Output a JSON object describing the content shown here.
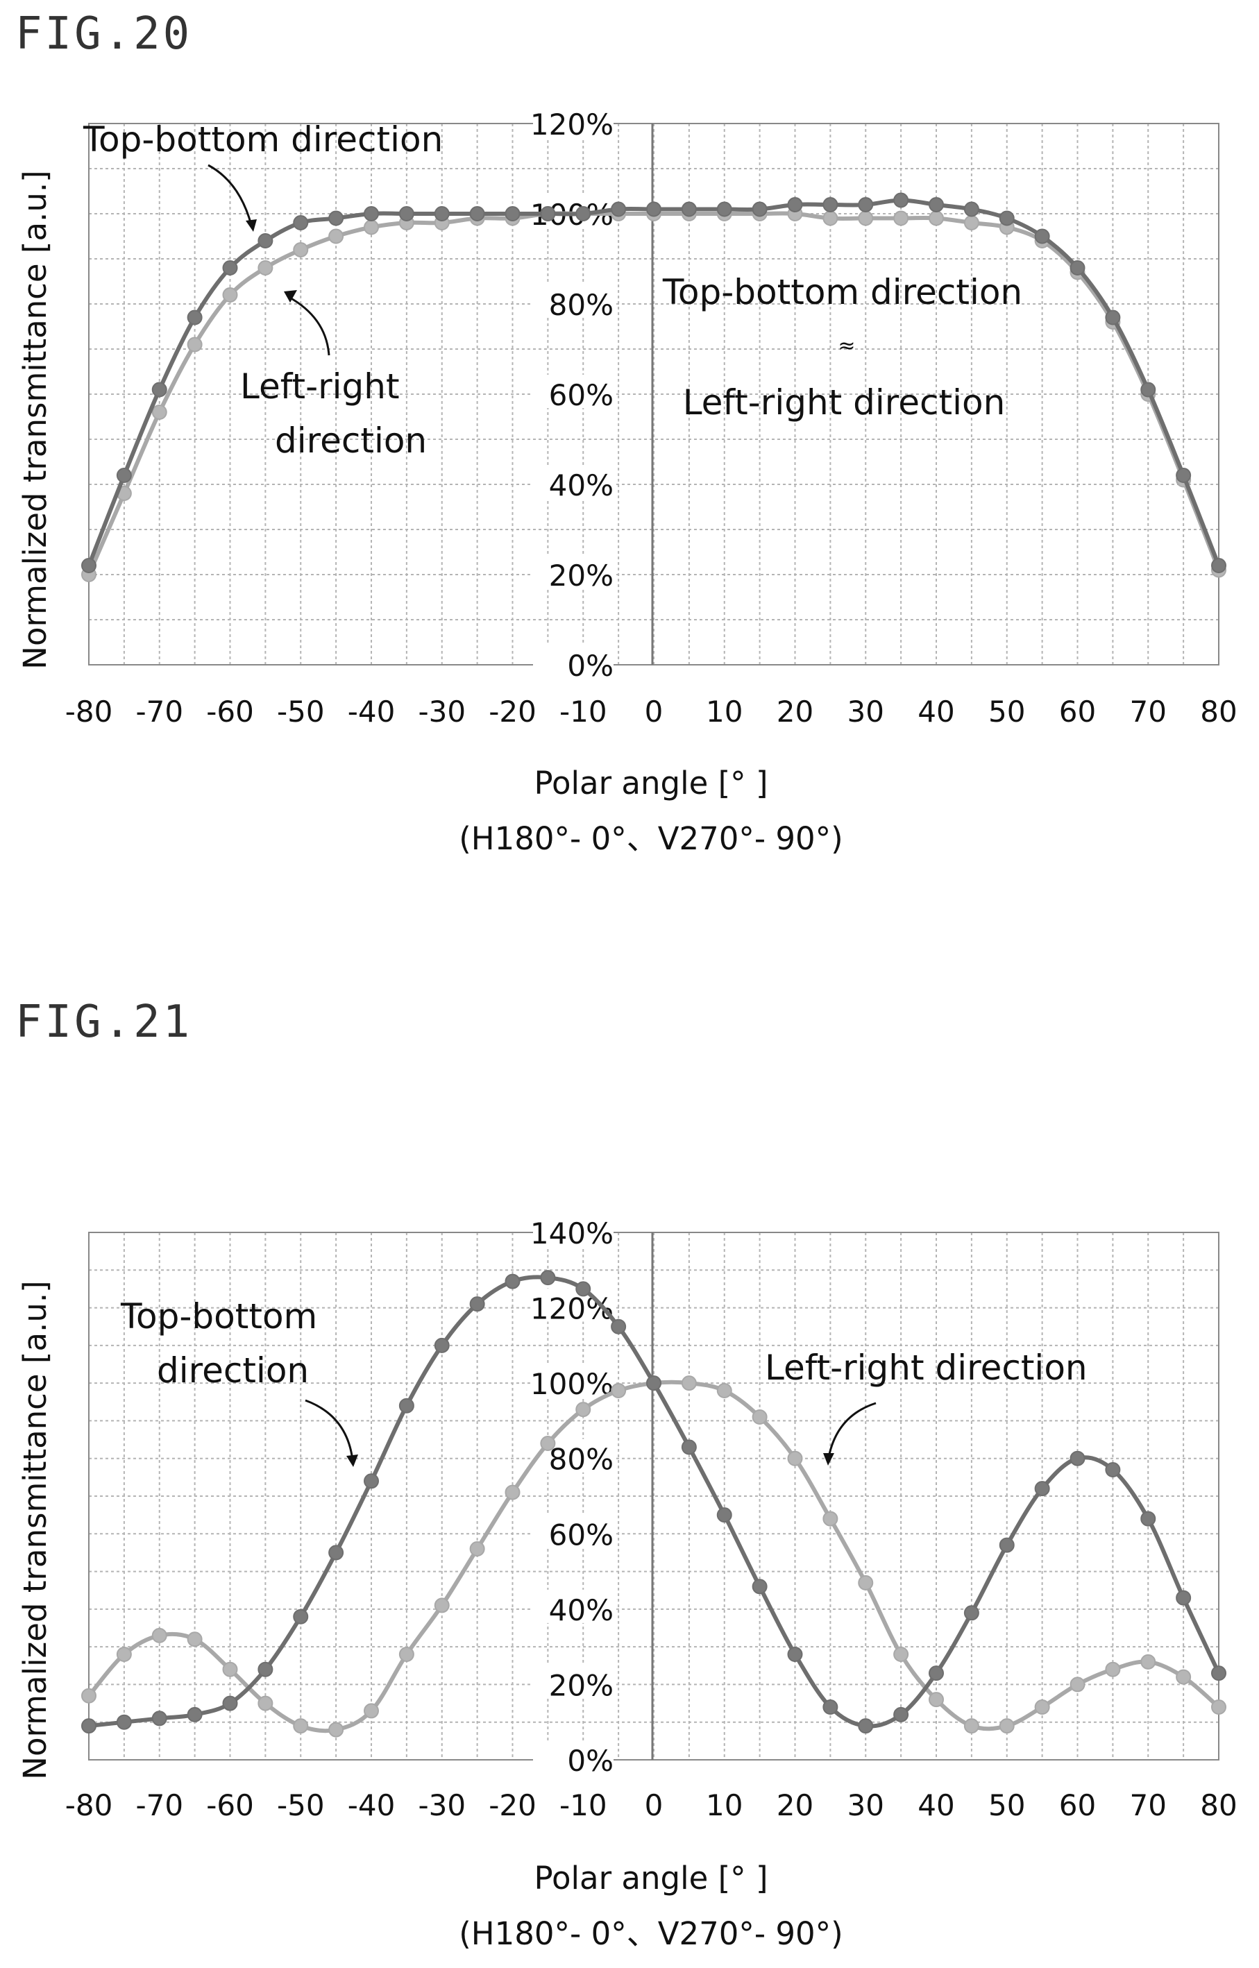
{
  "chart_data": [
    {
      "type": "line",
      "figure_label": "FIG.20",
      "ylabel": "Normalized transmittance [a.u.]",
      "xlabel": "Polar angle [° ]",
      "xlabel_sub": "(H180°- 0°、V270°- 90°)",
      "xlim": [
        -80,
        80
      ],
      "ylim": [
        0,
        120
      ],
      "x_ticks": [
        -80,
        -70,
        -60,
        -50,
        -40,
        -30,
        -20,
        -10,
        0,
        10,
        20,
        30,
        40,
        50,
        60,
        70,
        80
      ],
      "y_ticks": [
        "0%",
        "20%",
        "40%",
        "60%",
        "80%",
        "100%",
        "120%"
      ],
      "grid": true,
      "annotations": [
        "Top-bottom direction",
        "Left-right",
        "direction",
        "Top-bottom direction",
        "≈",
        "Left-right direction"
      ],
      "series": [
        {
          "color": "#6e6e6e",
          "x": [
            -80,
            -75,
            -70,
            -65,
            -60,
            -55,
            -50,
            -45,
            -40,
            -35,
            -30,
            -25,
            -20,
            -15,
            -10,
            -5,
            0,
            5,
            10,
            15,
            20,
            25,
            30,
            35,
            40,
            45,
            50,
            55,
            60,
            65,
            70,
            75,
            80
          ],
          "y": [
            22,
            42,
            61,
            77,
            88,
            94,
            98,
            99,
            100,
            100,
            100,
            100,
            100,
            100,
            100,
            101,
            101,
            101,
            101,
            101,
            102,
            102,
            102,
            103,
            102,
            101,
            99,
            95,
            88,
            77,
            61,
            42,
            22
          ]
        },
        {
          "color": "#a8a8a8",
          "x": [
            -80,
            -75,
            -70,
            -65,
            -60,
            -55,
            -50,
            -45,
            -40,
            -35,
            -30,
            -25,
            -20,
            -15,
            -10,
            -5,
            0,
            5,
            10,
            15,
            20,
            25,
            30,
            35,
            40,
            45,
            50,
            55,
            60,
            65,
            70,
            75,
            80
          ],
          "y": [
            20,
            38,
            56,
            71,
            82,
            88,
            92,
            95,
            97,
            98,
            98,
            99,
            99,
            100,
            100,
            100,
            100,
            100,
            100,
            100,
            100,
            99,
            99,
            99,
            99,
            98,
            97,
            94,
            87,
            76,
            60,
            41,
            21
          ]
        }
      ]
    },
    {
      "type": "line",
      "figure_label": "FIG.21",
      "ylabel": "Normalized transmittance [a.u.]",
      "xlabel": "Polar angle [° ]",
      "xlabel_sub": "(H180°- 0°、V270°- 90°)",
      "xlim": [
        -80,
        80
      ],
      "ylim": [
        0,
        140
      ],
      "x_ticks": [
        -80,
        -70,
        -60,
        -50,
        -40,
        -30,
        -20,
        -10,
        0,
        10,
        20,
        30,
        40,
        50,
        60,
        70,
        80
      ],
      "y_ticks": [
        "0%",
        "20%",
        "40%",
        "60%",
        "80%",
        "100%",
        "120%",
        "140%"
      ],
      "grid": true,
      "annotations": [
        "Top-bottom",
        "direction",
        "Left-right direction"
      ],
      "series": [
        {
          "color": "#6e6e6e",
          "x": [
            -80,
            -75,
            -70,
            -65,
            -60,
            -55,
            -50,
            -45,
            -40,
            -35,
            -30,
            -25,
            -20,
            -15,
            -10,
            -5,
            0,
            5,
            10,
            15,
            20,
            25,
            30,
            35,
            40,
            45,
            50,
            55,
            60,
            65,
            70,
            75,
            80
          ],
          "y": [
            9,
            10,
            11,
            12,
            15,
            24,
            38,
            55,
            74,
            94,
            110,
            121,
            127,
            128,
            125,
            115,
            100,
            83,
            65,
            46,
            28,
            14,
            9,
            12,
            23,
            39,
            57,
            72,
            80,
            77,
            64,
            43,
            23
          ]
        },
        {
          "color": "#a8a8a8",
          "x": [
            -80,
            -75,
            -70,
            -65,
            -60,
            -55,
            -50,
            -45,
            -40,
            -35,
            -30,
            -25,
            -20,
            -15,
            -10,
            -5,
            0,
            5,
            10,
            15,
            20,
            25,
            30,
            35,
            40,
            45,
            50,
            55,
            60,
            65,
            70,
            75,
            80
          ],
          "y": [
            17,
            28,
            33,
            32,
            24,
            15,
            9,
            8,
            13,
            28,
            41,
            56,
            71,
            84,
            93,
            98,
            100,
            100,
            98,
            91,
            80,
            64,
            47,
            28,
            16,
            9,
            9,
            14,
            20,
            24,
            26,
            22,
            14
          ]
        }
      ]
    }
  ]
}
